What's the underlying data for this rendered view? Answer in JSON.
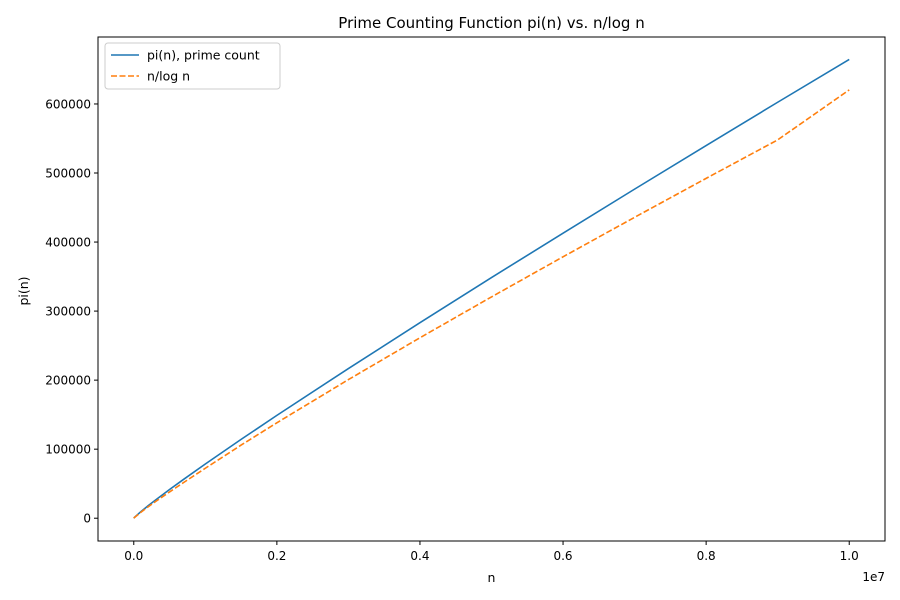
{
  "chart_data": {
    "type": "line",
    "title": "Prime Counting Function pi(n) vs. n/log n",
    "xlabel": "n",
    "ylabel": "pi(n)",
    "x_offset_label": "1e7",
    "xlim": [
      -500000,
      10500000
    ],
    "ylim": [
      -33000,
      697000
    ],
    "x_ticks": [
      0,
      2000000,
      4000000,
      6000000,
      8000000,
      10000000
    ],
    "x_tick_labels": [
      "0.0",
      "0.2",
      "0.4",
      "0.6",
      "0.8",
      "1.0"
    ],
    "y_ticks": [
      0,
      100000,
      200000,
      300000,
      400000,
      500000,
      600000
    ],
    "y_tick_labels": [
      "0",
      "100000",
      "200000",
      "300000",
      "400000",
      "500000",
      "600000"
    ],
    "grid": false,
    "legend_position": "upper-left",
    "x": [
      0,
      10000,
      100000,
      200000,
      300000,
      500000,
      700000,
      1000000,
      1500000,
      2000000,
      3000000,
      4000000,
      5000000,
      6000000,
      7000000,
      8000000,
      9000000,
      10000000
    ],
    "series": [
      {
        "name": "pi(n), prime count",
        "color": "#1f77b4",
        "style": "solid",
        "values": [
          0,
          1229,
          9592,
          17984,
          25997,
          41538,
          56543,
          78498,
          114155,
          148933,
          216816,
          283146,
          348513,
          412849,
          476648,
          539777,
          602489,
          664579
        ]
      },
      {
        "name": "n/log n",
        "color": "#ff7f0e",
        "style": "dashed",
        "values": [
          0,
          1086,
          8686,
          16385,
          23809,
          38103,
          51928,
          72382,
          105900,
          138217,
          200758,
          261362,
          320557,
          378650,
          435837,
          492247,
          547981,
          620421
        ]
      }
    ]
  }
}
